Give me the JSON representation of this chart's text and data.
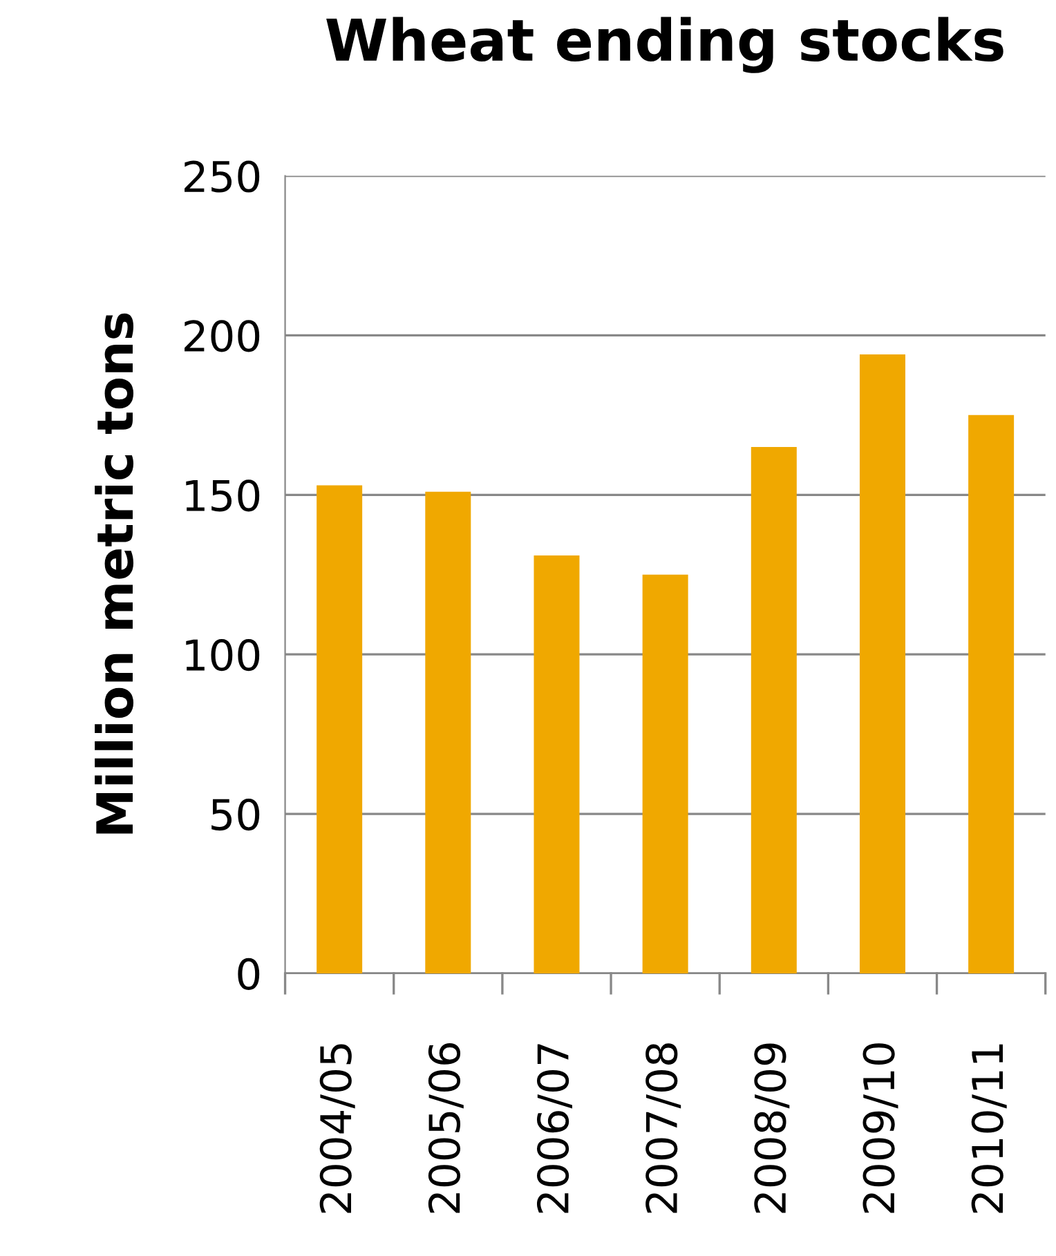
{
  "chart_data": {
    "type": "bar",
    "title": "Wheat ending stocks",
    "ylabel": "Million metric tons",
    "categories": [
      "2004/05",
      "2005/06",
      "2006/07",
      "2007/08",
      "2008/09",
      "2009/10",
      "2010/11"
    ],
    "values": [
      153,
      151,
      131,
      125,
      165,
      194,
      175
    ],
    "color": "#f0a800",
    "ylim": [
      0,
      250
    ],
    "yticks": [
      0,
      50,
      100,
      150,
      200,
      250
    ],
    "grid": "y",
    "legend": false
  }
}
